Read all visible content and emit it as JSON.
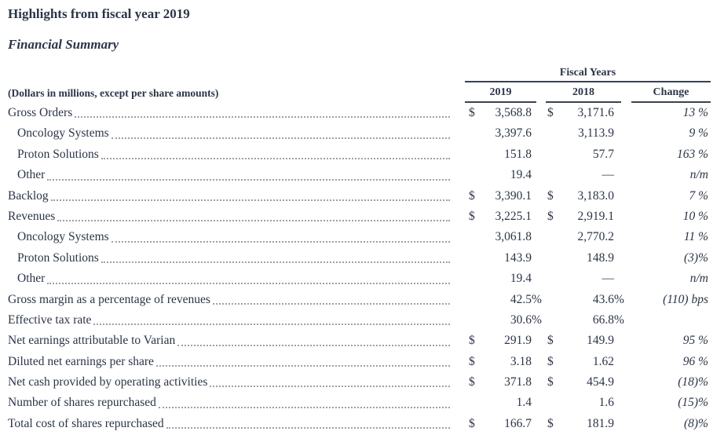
{
  "page": {
    "title": "Highlights from fiscal year 2019",
    "subtitle": "Financial Summary"
  },
  "colors": {
    "ink": "#2b3547",
    "rule": "#39424f",
    "dots": "#9ba1aa"
  },
  "table": {
    "group_header": "Fiscal Years",
    "row_header_label": "(Dollars in millions, except per share amounts)",
    "columns": [
      "2019",
      "2018",
      "Change"
    ],
    "rows": [
      {
        "label": "Gross Orders",
        "indent": 0,
        "cur1": "$",
        "val1": "3,568.8",
        "sfx1": "",
        "cur2": "$",
        "val2": "3,171.6",
        "sfx2": "",
        "change": "13 %"
      },
      {
        "label": "Oncology Systems",
        "indent": 1,
        "cur1": "",
        "val1": "3,397.6",
        "sfx1": "",
        "cur2": "",
        "val2": "3,113.9",
        "sfx2": "",
        "change": "9 %"
      },
      {
        "label": "Proton Solutions",
        "indent": 1,
        "cur1": "",
        "val1": "151.8",
        "sfx1": "",
        "cur2": "",
        "val2": "57.7",
        "sfx2": "",
        "change": "163 %"
      },
      {
        "label": "Other",
        "indent": 1,
        "cur1": "",
        "val1": "19.4",
        "sfx1": "",
        "cur2": "",
        "val2": "—",
        "sfx2": "",
        "change": "n/m"
      },
      {
        "label": "Backlog",
        "indent": 0,
        "cur1": "$",
        "val1": "3,390.1",
        "sfx1": "",
        "cur2": "$",
        "val2": "3,183.0",
        "sfx2": "",
        "change": "7 %"
      },
      {
        "label": "Revenues",
        "indent": 0,
        "cur1": "$",
        "val1": "3,225.1",
        "sfx1": "",
        "cur2": "$",
        "val2": "2,919.1",
        "sfx2": "",
        "change": "10 %"
      },
      {
        "label": "Oncology Systems",
        "indent": 1,
        "cur1": "",
        "val1": "3,061.8",
        "sfx1": "",
        "cur2": "",
        "val2": "2,770.2",
        "sfx2": "",
        "change": "11 %"
      },
      {
        "label": "Proton Solutions",
        "indent": 1,
        "cur1": "",
        "val1": "143.9",
        "sfx1": "",
        "cur2": "",
        "val2": "148.9",
        "sfx2": "",
        "change": "(3)%"
      },
      {
        "label": "Other",
        "indent": 1,
        "cur1": "",
        "val1": "19.4",
        "sfx1": "",
        "cur2": "",
        "val2": "—",
        "sfx2": "",
        "change": "n/m"
      },
      {
        "label": "Gross margin as a percentage of revenues",
        "indent": 0,
        "cur1": "",
        "val1": "42.5",
        "sfx1": "%",
        "cur2": "",
        "val2": "43.6",
        "sfx2": "%",
        "change": "(110) bps"
      },
      {
        "label": "Effective tax rate",
        "indent": 0,
        "cur1": "",
        "val1": "30.6",
        "sfx1": "%",
        "cur2": "",
        "val2": "66.8",
        "sfx2": "%",
        "change": ""
      },
      {
        "label": "Net earnings attributable to Varian",
        "indent": 0,
        "cur1": "$",
        "val1": "291.9",
        "sfx1": "",
        "cur2": "$",
        "val2": "149.9",
        "sfx2": "",
        "change": "95 %"
      },
      {
        "label": "Diluted net earnings per share",
        "indent": 0,
        "cur1": "$",
        "val1": "3.18",
        "sfx1": "",
        "cur2": "$",
        "val2": "1.62",
        "sfx2": "",
        "change": "96 %"
      },
      {
        "label": "Net cash provided by operating activities",
        "indent": 0,
        "cur1": "$",
        "val1": "371.8",
        "sfx1": "",
        "cur2": "$",
        "val2": "454.9",
        "sfx2": "",
        "change": "(18)%"
      },
      {
        "label": "Number of shares repurchased",
        "indent": 0,
        "cur1": "",
        "val1": "1.4",
        "sfx1": "",
        "cur2": "",
        "val2": "1.6",
        "sfx2": "",
        "change": "(15)%"
      },
      {
        "label": "Total cost of shares repurchased",
        "indent": 0,
        "cur1": "$",
        "val1": "166.7",
        "sfx1": "",
        "cur2": "$",
        "val2": "181.9",
        "sfx2": "",
        "change": "(8)%"
      }
    ]
  }
}
